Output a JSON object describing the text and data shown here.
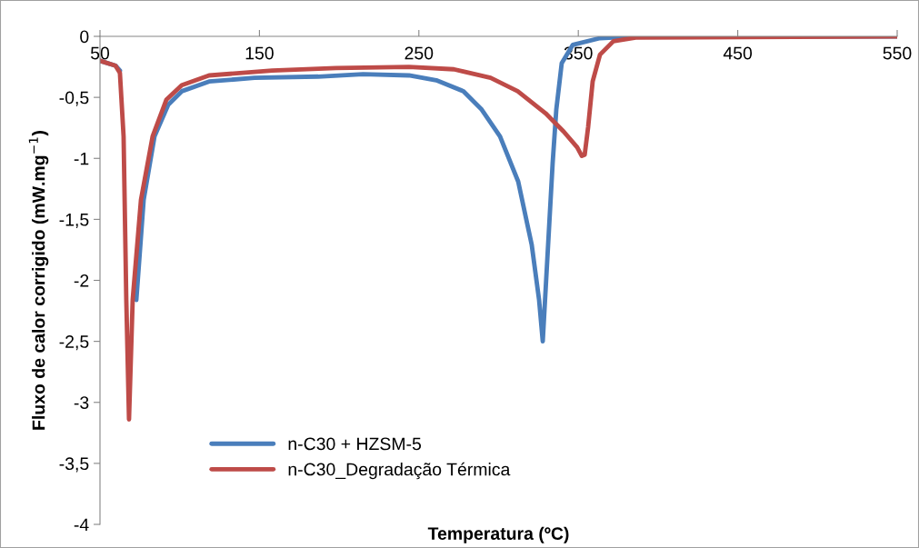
{
  "chart_data": {
    "type": "line",
    "xlabel": "Temperatura (ºC)",
    "ylabel": "Fluxo de calor corrigido (mW.mg$^{−1}$)",
    "xlim": [
      50,
      550
    ],
    "ylim": [
      -4,
      0
    ],
    "xticks": [
      50,
      150,
      250,
      350,
      450,
      550
    ],
    "yticks": [
      0,
      {
        "value": -0.5,
        "label": "-0,5"
      },
      -1,
      {
        "value": -1.5,
        "label": "-1,5"
      },
      -2,
      {
        "value": -2.5,
        "label": "-2,5"
      },
      -3,
      {
        "value": -3.5,
        "label": "-3,5"
      },
      -4
    ],
    "grid": false,
    "legend": "bottom left",
    "marker": "none",
    "line_style": "solid",
    "series": [
      {
        "name": "n-C30 + HZSM-5",
        "color": "#4a7ebb",
        "x": [
          50,
          59.7,
          62.5,
          64.8,
          66.5,
          68.2,
          72.8,
          77.4,
          84.2,
          92.8,
          101.3,
          118.4,
          146.9,
          186.8,
          215,
          243.8,
          260.9,
          278,
          289.4,
          300.9,
          312.3,
          320.8,
          325.4,
          327.7,
          333.9,
          336.2,
          339.6,
          346.5,
          363.6,
          386,
          550
        ],
        "values": [
          -0.2,
          -0.24,
          -0.28,
          null,
          null,
          null,
          -2.16,
          -1.34,
          -0.82,
          -0.56,
          -0.45,
          -0.37,
          -0.34,
          -0.33,
          -0.31,
          -0.32,
          -0.36,
          -0.45,
          -0.6,
          -0.82,
          -1.19,
          -1.71,
          -2.16,
          -2.5,
          -1.04,
          -0.6,
          -0.22,
          -0.07,
          -0.015,
          0,
          0
        ]
      },
      {
        "name": "n-C30_Degradação Térmica",
        "color": "#be4b48",
        "x": [
          50,
          59.7,
          62.5,
          64.8,
          66.5,
          68.2,
          70.5,
          75.7,
          83,
          91.6,
          101.3,
          118.4,
          158,
          198,
          243.8,
          272,
          295,
          312,
          329.4,
          340.8,
          349.3,
          352.2,
          354,
          356.2,
          359,
          363.6,
          372,
          386,
          550
        ],
        "values": [
          -0.2,
          -0.24,
          -0.3,
          -0.82,
          -2.16,
          -3.14,
          -2.16,
          -1.34,
          -0.82,
          -0.52,
          -0.4,
          -0.32,
          -0.28,
          -0.26,
          -0.25,
          -0.27,
          -0.34,
          -0.45,
          -0.63,
          -0.78,
          -0.91,
          -0.98,
          -0.97,
          -0.74,
          -0.37,
          -0.15,
          -0.04,
          -0.01,
          0
        ]
      }
    ]
  }
}
